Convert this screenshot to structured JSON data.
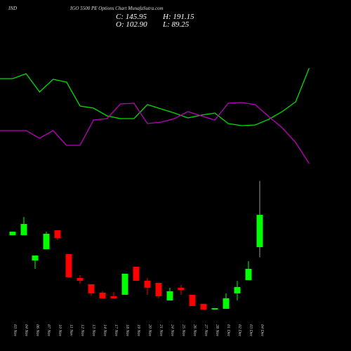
{
  "chart_data": {
    "type": "candlestick",
    "title_left": "IND",
    "title": "IGO 5500  PE Options  Chart MunafaSutra.com",
    "ohlc_labels": {
      "close": "C: 145.95",
      "high": "H: 191.15",
      "open": "O: 102.90",
      "low": "L: 89.25"
    },
    "categories": [
      "03 Nov",
      "04 Nov",
      "06 Nov",
      "07 Nov",
      "10 Nov",
      "11 Nov",
      "12 Nov",
      "13 Nov",
      "14 Nov",
      "17 Nov",
      "18 Nov",
      "19 Nov",
      "20 Nov",
      "21 Nov",
      "24 Nov",
      "25 Nov",
      "26 Nov",
      "27 Nov",
      "28 Nov",
      "01 Dec",
      "02 Dec",
      "03 Dec",
      "04 Dec"
    ],
    "open": [
      118.9,
      118.9,
      85.2,
      100.2,
      125.4,
      93.6,
      61.8,
      53.4,
      42.2,
      37.5,
      39.4,
      76.8,
      58.1,
      55.3,
      31.9,
      48.8,
      39.4,
      27.3,
      19.8,
      20.7,
      41.3,
      59.0,
      102.9
    ],
    "high": [
      123.5,
      143.1,
      91.7,
      123.5,
      125.4,
      93.6,
      65.6,
      53.4,
      44.1,
      43.1,
      67.5,
      76.8,
      61.8,
      55.3,
      48.8,
      52.5,
      39.4,
      27.3,
      21.6,
      41.3,
      57.8,
      84.3,
      191.15
    ],
    "low": [
      118.9,
      118.9,
      74.0,
      100.2,
      112.3,
      62.8,
      54.4,
      38.4,
      34.7,
      34.7,
      39.4,
      58.1,
      39.4,
      34.7,
      31.9,
      39.4,
      24.4,
      19.8,
      19.8,
      20.7,
      31.9,
      59.0,
      89.25
    ],
    "close": [
      123.5,
      133.8,
      91.7,
      120.7,
      115.1,
      62.8,
      58.1,
      41.3,
      34.7,
      34.7,
      67.5,
      58.1,
      48.8,
      37.5,
      44.1,
      45.9,
      24.4,
      19.8,
      21.6,
      34.7,
      49.7,
      74.0,
      145.95
    ],
    "up_color": "#00ff00",
    "down_color": "#ff0000",
    "ylim": [
      0,
      205
    ],
    "indicators": [
      {
        "color": "#00dd00",
        "values": [
          138,
          145,
          119,
          137,
          133,
          99,
          96,
          85,
          81,
          81,
          101,
          95,
          89,
          82,
          86,
          89,
          74,
          71,
          72,
          80,
          91,
          105,
          153
        ]
      },
      {
        "color": "#bb00bb",
        "values": [
          64,
          64,
          53,
          64,
          43,
          43,
          79,
          81,
          102,
          103,
          74,
          76,
          81,
          91,
          85,
          79,
          103,
          104,
          101,
          84,
          68,
          47,
          17
        ]
      }
    ]
  }
}
